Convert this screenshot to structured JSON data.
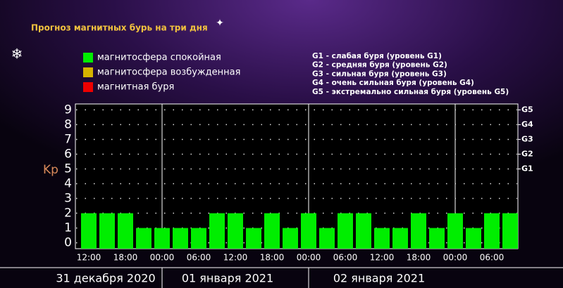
{
  "chart_data": {
    "type": "bar",
    "title": "Прогноз магнитных бурь на три дня",
    "ylabel": "Kp",
    "legend": [
      {
        "name": "магнитосфера спокойная",
        "color": "#00ee00"
      },
      {
        "name": "магнитосфера возбужденная",
        "color": "#d6b400"
      },
      {
        "name": "магнитная буря",
        "color": "#ee0000"
      }
    ],
    "storm_levels": [
      "G1 - слабая буря (уровень G1)",
      "G2 - средняя буря (уровень G2)",
      "G3 - сильная буря (уровень G3)",
      "G4 - очень сильная буря (уровень G4)",
      "G5 - экстремально сильная буря (уровень G5)"
    ],
    "categories": [
      "12:00",
      null,
      "18:00",
      null,
      "00:00",
      null,
      "06:00",
      null,
      "12:00",
      null,
      "18:00",
      null,
      "00:00",
      null,
      "06:00",
      null,
      "12:00",
      null,
      "18:00",
      null,
      "00:00",
      null,
      "06:00",
      null
    ],
    "values": [
      2,
      2,
      2,
      1,
      1,
      1,
      1,
      2,
      2,
      1,
      2,
      1,
      2,
      1,
      2,
      2,
      1,
      1,
      2,
      1,
      2,
      1,
      2,
      2
    ],
    "color": "#00ee00",
    "days": [
      "31 декабря 2020",
      "01 января 2021",
      "02 января 2021"
    ],
    "ylim": [
      -0.4,
      9.4
    ],
    "yticks": [
      0,
      1,
      2,
      3,
      4,
      5,
      6,
      7,
      8,
      9
    ],
    "y2ticks": [
      {
        "value": 5,
        "label": "G1"
      },
      {
        "value": 6,
        "label": "G2"
      },
      {
        "value": 7,
        "label": "G3"
      },
      {
        "value": 8,
        "label": "G4"
      },
      {
        "value": 9,
        "label": "G5"
      }
    ],
    "grid": true
  }
}
